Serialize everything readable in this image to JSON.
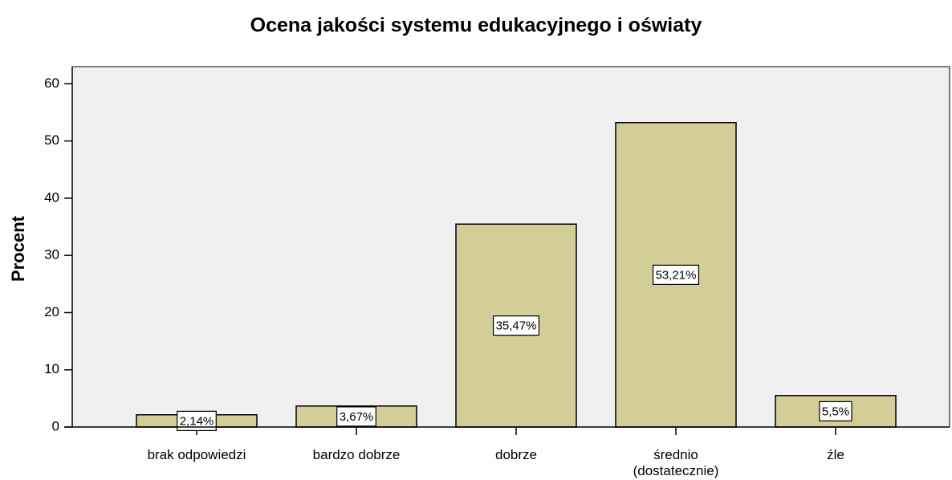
{
  "chart_data": {
    "type": "bar",
    "title": "Ocena jakości systemu edukacyjnego i oświaty",
    "y_label": "Procent",
    "categories": [
      "brak odpowiedzi",
      "bardzo dobrze",
      "dobrze",
      "średnio\n(dostatecznie)",
      "źle"
    ],
    "values": [
      2.14,
      3.67,
      35.47,
      53.21,
      5.5
    ],
    "value_labels": [
      "2,14%",
      "3,67%",
      "35,47%",
      "53,21%",
      "5,5%"
    ],
    "color": "#d3ce97",
    "ylim": [
      0,
      63
    ],
    "yticks": [
      0,
      10,
      20,
      30,
      40,
      50,
      60
    ],
    "grid": false
  }
}
